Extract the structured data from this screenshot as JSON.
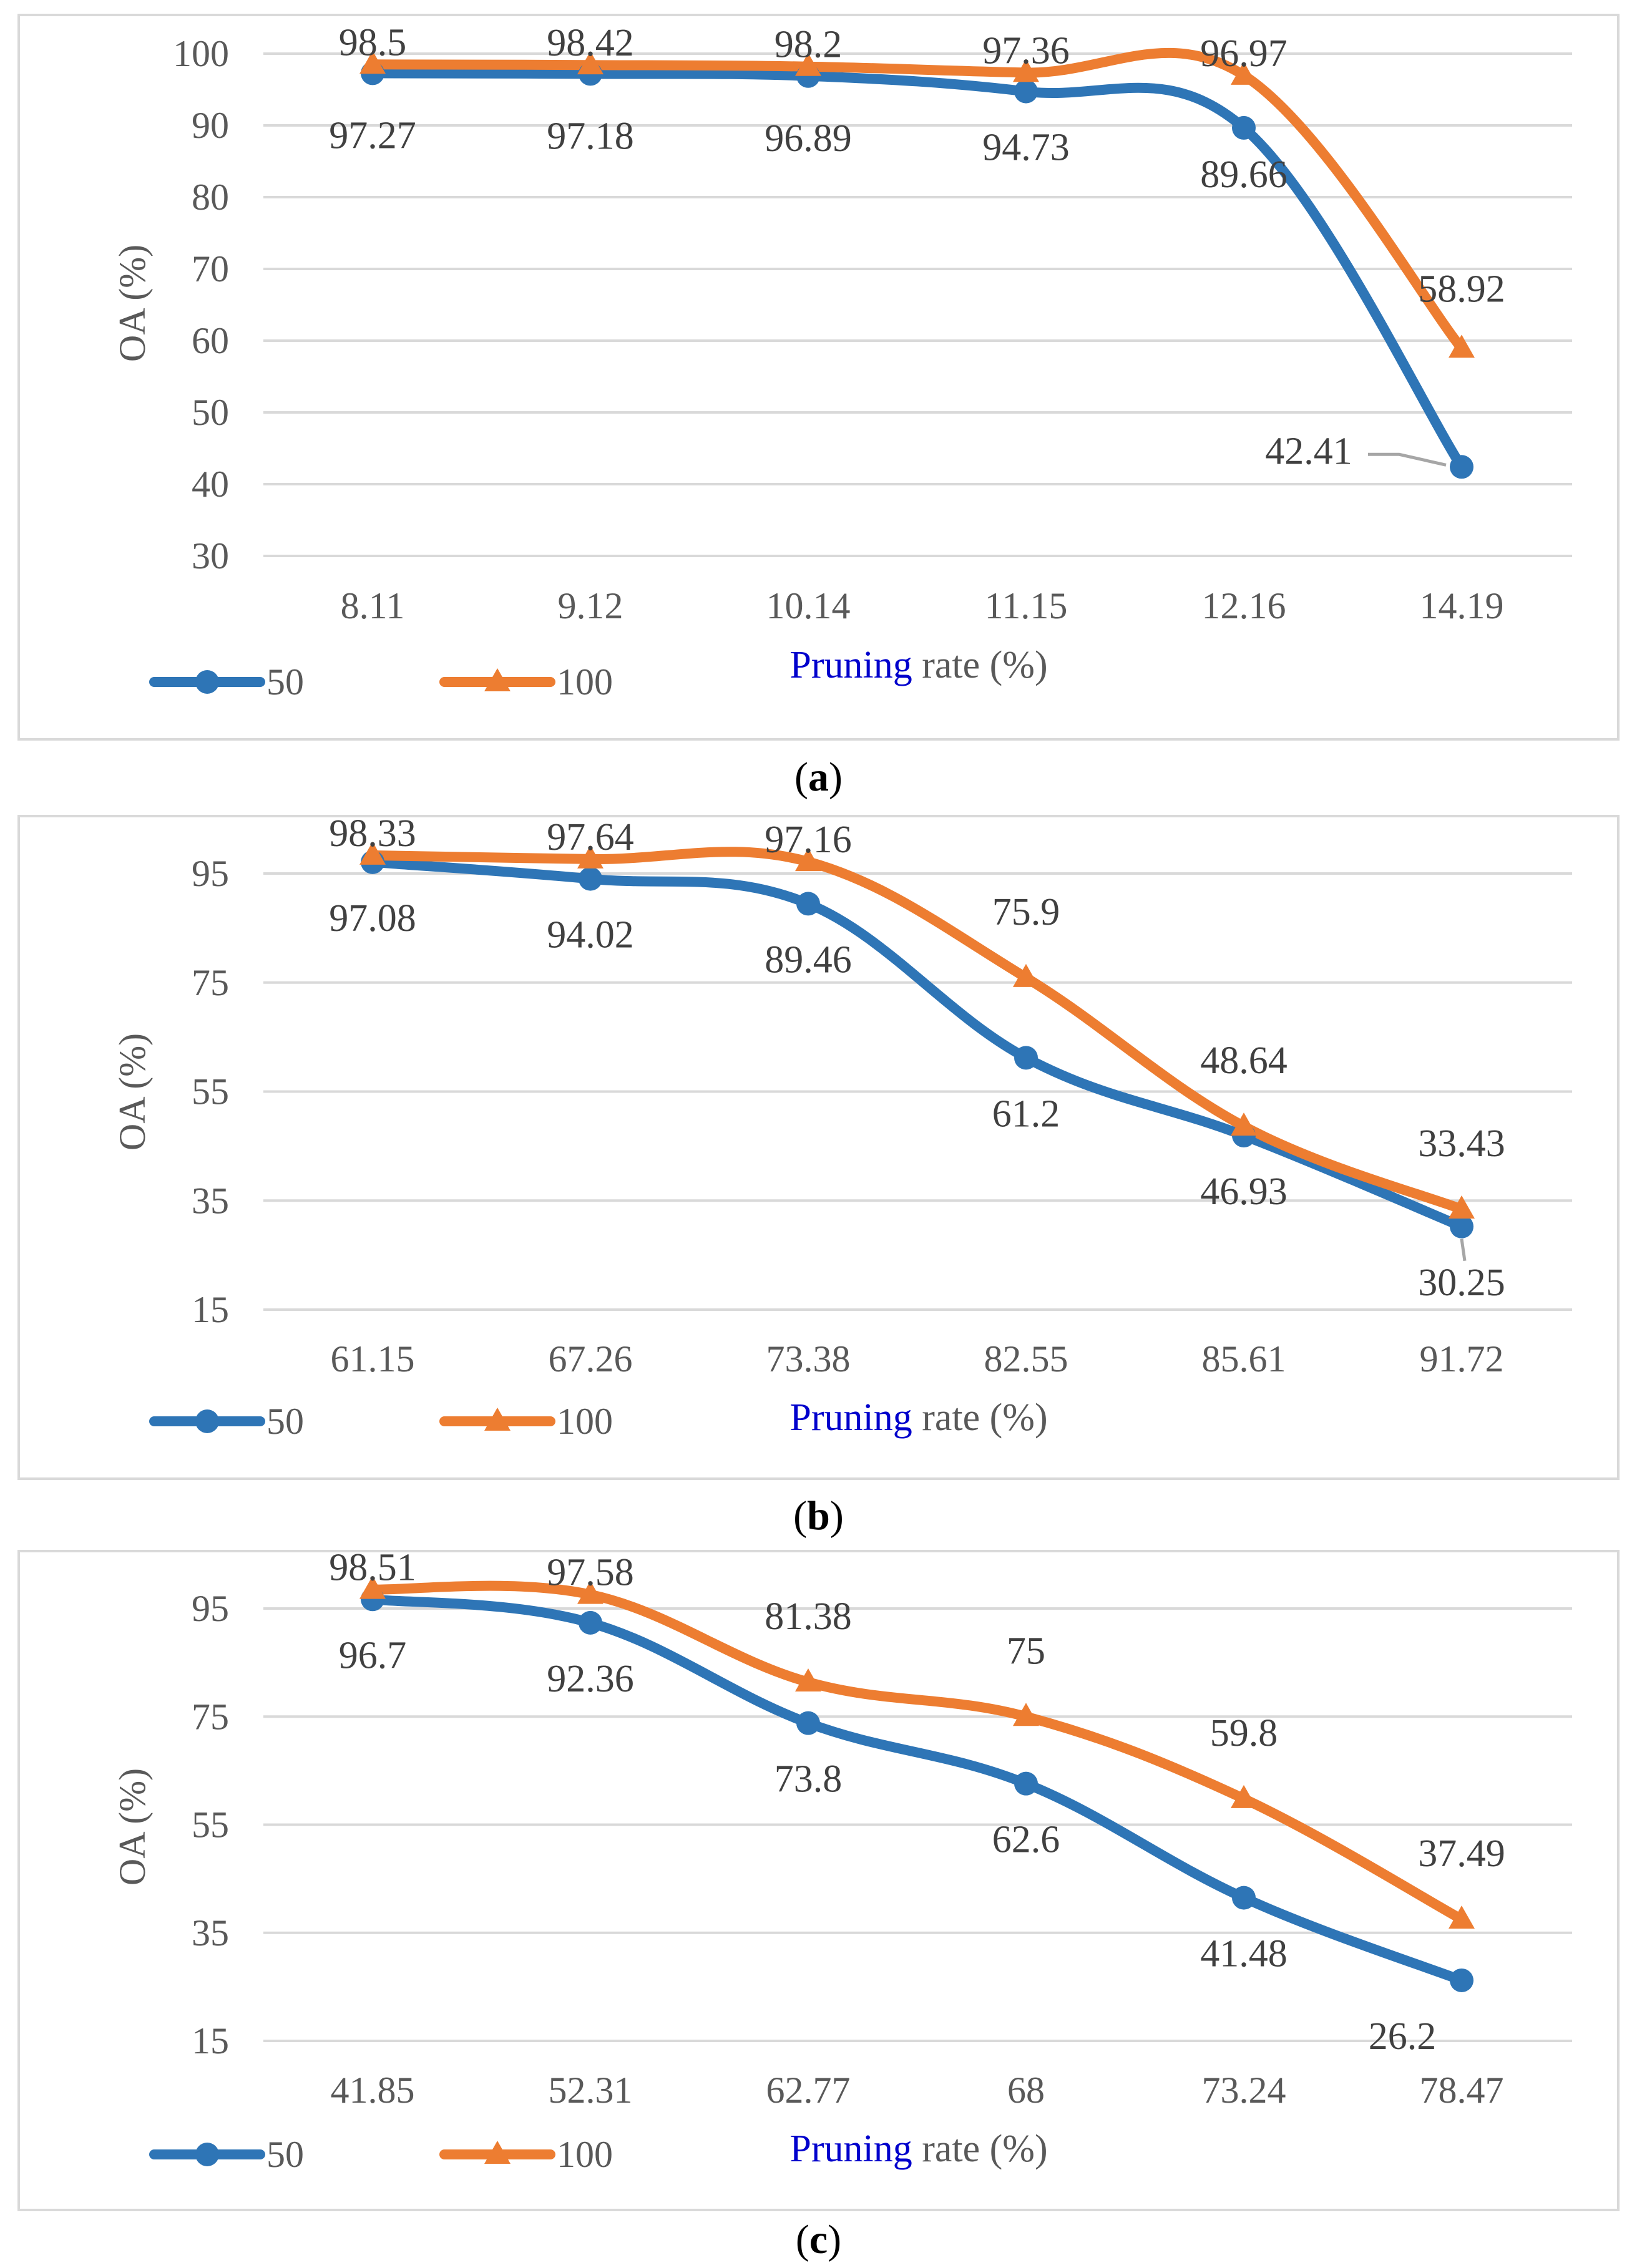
{
  "chart_data": [
    {
      "id": "a",
      "type": "line",
      "caption": "a",
      "categories": [
        "8.11",
        "9.12",
        "10.14",
        "11.15",
        "12.16",
        "14.19"
      ],
      "xlabel_parts": [
        "Pruning",
        " rate (%)"
      ],
      "ylabel": "OA (%)",
      "ylim": [
        30,
        100
      ],
      "yticks": [
        "30",
        "40",
        "50",
        "60",
        "70",
        "80",
        "90",
        "100"
      ],
      "grid": true,
      "legend_position": "bottom-left",
      "series": [
        {
          "name": "50",
          "color": "#2e75b6",
          "marker": "circle",
          "values": [
            97.27,
            97.18,
            96.89,
            94.73,
            89.66,
            42.41
          ],
          "labels": [
            "97.27",
            "97.18",
            "96.89",
            "94.73",
            "89.66",
            "42.41"
          ]
        },
        {
          "name": "100",
          "color": "#ed7d31",
          "marker": "triangle",
          "values": [
            98.5,
            98.42,
            98.2,
            97.36,
            96.97,
            58.92
          ],
          "labels": [
            "98.5",
            "98.42",
            "98.2",
            "97.36",
            "96.97",
            "58.92"
          ]
        }
      ]
    },
    {
      "id": "b",
      "type": "line",
      "caption": "b",
      "categories": [
        "61.15",
        "67.26",
        "73.38",
        "82.55",
        "85.61",
        "91.72"
      ],
      "xlabel_parts": [
        "Pruning",
        " rate (%)"
      ],
      "ylabel": "OA (%)",
      "ylim": [
        15,
        100
      ],
      "yticks": [
        "15",
        "35",
        "55",
        "75",
        "95"
      ],
      "grid": true,
      "legend_position": "bottom-left",
      "series": [
        {
          "name": "50",
          "color": "#2e75b6",
          "marker": "circle",
          "values": [
            97.08,
            94.02,
            89.46,
            61.2,
            46.93,
            30.25
          ],
          "labels": [
            "97.08",
            "94.02",
            "89.46",
            "61.2",
            "46.93",
            "30.25"
          ]
        },
        {
          "name": "100",
          "color": "#ed7d31",
          "marker": "triangle",
          "values": [
            98.33,
            97.64,
            97.16,
            75.9,
            48.64,
            33.43
          ],
          "labels": [
            "98.33",
            "97.64",
            "97.16",
            "75.9",
            "48.64",
            "33.43"
          ]
        }
      ]
    },
    {
      "id": "c",
      "type": "line",
      "caption": "c",
      "categories": [
        "41.85",
        "52.31",
        "62.77",
        "68",
        "73.24",
        "78.47"
      ],
      "xlabel_parts": [
        "Pruning",
        " rate (%)"
      ],
      "ylabel": "OA (%)",
      "ylim": [
        15,
        100
      ],
      "yticks": [
        "15",
        "35",
        "55",
        "75",
        "95"
      ],
      "grid": true,
      "legend_position": "bottom-left",
      "series": [
        {
          "name": "50",
          "color": "#2e75b6",
          "marker": "circle",
          "values": [
            96.7,
            92.36,
            73.8,
            62.6,
            41.48,
            26.2
          ],
          "labels": [
            "96.7",
            "92.36",
            "73.8",
            "62.6",
            "41.48",
            "26.2"
          ]
        },
        {
          "name": "100",
          "color": "#ed7d31",
          "marker": "triangle",
          "values": [
            98.51,
            97.58,
            81.38,
            75,
            59.8,
            37.49
          ],
          "labels": [
            "98.51",
            "97.58",
            "81.38",
            "75",
            "59.8",
            "37.49"
          ]
        }
      ]
    }
  ]
}
